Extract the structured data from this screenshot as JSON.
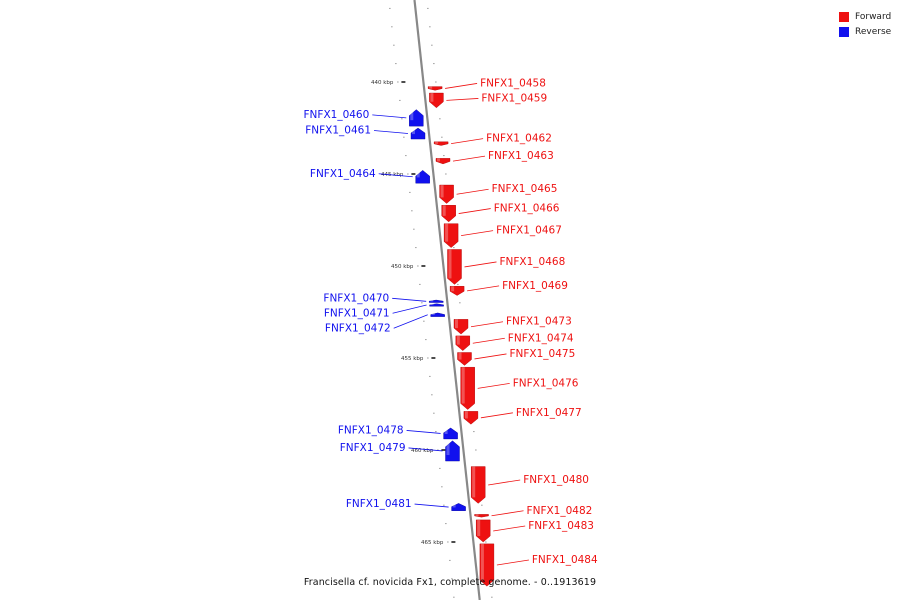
{
  "legend": {
    "items": [
      {
        "label": "Forward",
        "color": "#ee1111"
      },
      {
        "label": "Reverse",
        "color": "#1111ee"
      }
    ]
  },
  "caption": "Francisella cf. novicida Fx1, complete genome. - 0..1913619",
  "colors": {
    "forward": "#ee1111",
    "forward_dark": "#aa0000",
    "reverse": "#1111ee",
    "reverse_dark": "#000099",
    "axis": "#888888"
  },
  "ticks": [
    {
      "label": "440 kbp",
      "kbp": 440
    },
    {
      "label": "445 kbp",
      "kbp": 445
    },
    {
      "label": "450 kbp",
      "kbp": 450
    },
    {
      "label": "455 kbp",
      "kbp": 455
    },
    {
      "label": "460 kbp",
      "kbp": 460
    },
    {
      "label": "465 kbp",
      "kbp": 465
    }
  ],
  "genes": [
    {
      "name": "FNFX1_0458",
      "strand": "forward",
      "start": 440.25,
      "end": 440.45
    },
    {
      "name": "FNFX1_0459",
      "strand": "forward",
      "start": 440.6,
      "end": 441.4
    },
    {
      "name": "FNFX1_0460",
      "strand": "reverse",
      "start": 441.5,
      "end": 442.4
    },
    {
      "name": "FNFX1_0461",
      "strand": "reverse",
      "start": 442.5,
      "end": 443.1
    },
    {
      "name": "FNFX1_0462",
      "strand": "forward",
      "start": 443.25,
      "end": 443.45
    },
    {
      "name": "FNFX1_0463",
      "strand": "forward",
      "start": 444.15,
      "end": 444.45
    },
    {
      "name": "FNFX1_0464",
      "strand": "reverse",
      "start": 444.8,
      "end": 445.5
    },
    {
      "name": "FNFX1_0465",
      "strand": "forward",
      "start": 445.6,
      "end": 446.6
    },
    {
      "name": "FNFX1_0466",
      "strand": "forward",
      "start": 446.7,
      "end": 447.6
    },
    {
      "name": "FNFX1_0467",
      "strand": "forward",
      "start": 447.7,
      "end": 449.0
    },
    {
      "name": "FNFX1_0468",
      "strand": "forward",
      "start": 449.1,
      "end": 451.0
    },
    {
      "name": "FNFX1_0469",
      "strand": "forward",
      "start": 451.1,
      "end": 451.6
    },
    {
      "name": "FNFX1_0470",
      "strand": "reverse",
      "start": 451.85,
      "end": 451.95
    },
    {
      "name": "FNFX1_0471",
      "strand": "reverse",
      "start": 452.05,
      "end": 452.15
    },
    {
      "name": "FNFX1_0472",
      "strand": "reverse",
      "start": 452.55,
      "end": 452.75
    },
    {
      "name": "FNFX1_0473",
      "strand": "forward",
      "start": 452.9,
      "end": 453.7
    },
    {
      "name": "FNFX1_0474",
      "strand": "forward",
      "start": 453.8,
      "end": 454.6
    },
    {
      "name": "FNFX1_0475",
      "strand": "forward",
      "start": 454.7,
      "end": 455.4
    },
    {
      "name": "FNFX1_0476",
      "strand": "forward",
      "start": 455.5,
      "end": 457.8
    },
    {
      "name": "FNFX1_0477",
      "strand": "forward",
      "start": 457.9,
      "end": 458.6
    },
    {
      "name": "FNFX1_0478",
      "strand": "reverse",
      "start": 458.8,
      "end": 459.4
    },
    {
      "name": "FNFX1_0479",
      "strand": "reverse",
      "start": 459.5,
      "end": 460.6
    },
    {
      "name": "FNFX1_0480",
      "strand": "forward",
      "start": 460.9,
      "end": 462.9
    },
    {
      "name": "FNFX1_0481",
      "strand": "reverse",
      "start": 462.9,
      "end": 463.3
    },
    {
      "name": "FNFX1_0482",
      "strand": "forward",
      "start": 463.5,
      "end": 463.65
    },
    {
      "name": "FNFX1_0483",
      "strand": "forward",
      "start": 463.8,
      "end": 465.0
    },
    {
      "name": "FNFX1_0484",
      "strand": "forward",
      "start": 465.1,
      "end": 467.4
    }
  ]
}
